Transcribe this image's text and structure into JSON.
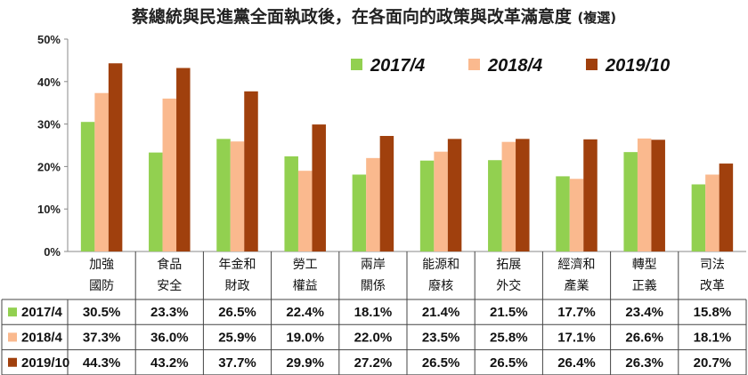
{
  "title": "蔡總統與民進黨全面執政後，在各面向的政策與改革滿意度",
  "subtitle": "(複選)",
  "chart_data": {
    "type": "bar",
    "title": "蔡總統與民進黨全面執政後，在各面向的政策與改革滿意度 (複選)",
    "categories": [
      [
        "加強",
        "國防"
      ],
      [
        "食品",
        "安全"
      ],
      [
        "年金和",
        "財政"
      ],
      [
        "勞工",
        "權益"
      ],
      [
        "兩岸",
        "關係"
      ],
      [
        "能源和",
        "廢核"
      ],
      [
        "拓展",
        "外交"
      ],
      [
        "經濟和",
        "產業"
      ],
      [
        "轉型",
        "正義"
      ],
      [
        "司法",
        "改革"
      ]
    ],
    "series": [
      {
        "name": "2017/4",
        "color": "#92d050",
        "values": [
          30.5,
          23.3,
          26.5,
          22.4,
          18.1,
          21.4,
          21.5,
          17.7,
          23.4,
          15.8
        ],
        "labels": [
          "30.5%",
          "23.3%",
          "26.5%",
          "22.4%",
          "18.1%",
          "21.4%",
          "21.5%",
          "17.7%",
          "23.4%",
          "15.8%"
        ]
      },
      {
        "name": "2018/4",
        "color": "#fab98e",
        "values": [
          37.3,
          36.0,
          25.9,
          19.0,
          22.0,
          23.5,
          25.8,
          17.1,
          26.6,
          18.1
        ],
        "labels": [
          "37.3%",
          "36.0%",
          "25.9%",
          "19.0%",
          "22.0%",
          "23.5%",
          "25.8%",
          "17.1%",
          "26.6%",
          "18.1%"
        ]
      },
      {
        "name": "2019/10",
        "color": "#a0400d",
        "values": [
          44.3,
          43.2,
          37.7,
          29.9,
          27.2,
          26.5,
          26.5,
          26.4,
          26.3,
          20.7
        ],
        "labels": [
          "44.3%",
          "43.2%",
          "37.7%",
          "29.9%",
          "27.2%",
          "26.5%",
          "26.5%",
          "26.4%",
          "26.3%",
          "20.7%"
        ]
      }
    ],
    "yticks": [
      "0%",
      "10%",
      "20%",
      "30%",
      "40%",
      "50%"
    ],
    "ylim": [
      0,
      50
    ],
    "xlabel": "",
    "ylabel": "",
    "grid": false,
    "legend": "top-right",
    "data_table": true
  }
}
